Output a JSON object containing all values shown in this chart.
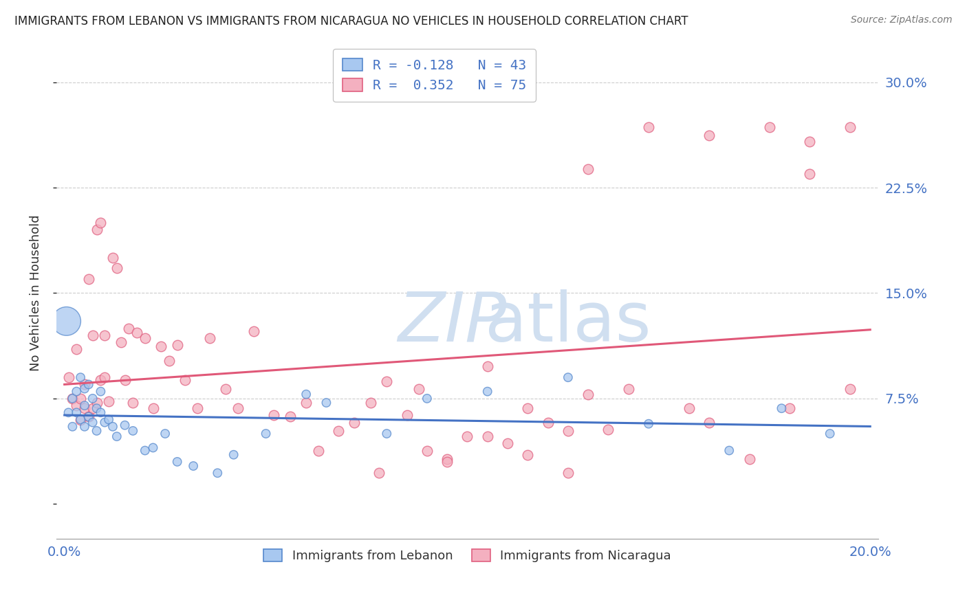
{
  "title": "IMMIGRANTS FROM LEBANON VS IMMIGRANTS FROM NICARAGUA NO VEHICLES IN HOUSEHOLD CORRELATION CHART",
  "source": "Source: ZipAtlas.com",
  "ylabel": "No Vehicles in Household",
  "xlim_min": -0.002,
  "xlim_max": 0.202,
  "ylim_min": -0.025,
  "ylim_max": 0.325,
  "ytick_vals": [
    0.0,
    0.075,
    0.15,
    0.225,
    0.3
  ],
  "ytick_labels": [
    "",
    "7.5%",
    "15.0%",
    "22.5%",
    "30.0%"
  ],
  "xtick_vals": [
    0.0,
    0.05,
    0.1,
    0.15,
    0.2
  ],
  "xtick_labels": [
    "0.0%",
    "",
    "",
    "",
    "20.0%"
  ],
  "lebanon_color": "#a8c8f0",
  "nicaragua_color": "#f4b0c0",
  "lebanon_edge_color": "#5588cc",
  "nicaragua_edge_color": "#e06080",
  "lebanon_line_color": "#4472c4",
  "nicaragua_line_color": "#e05878",
  "watermark_color": "#d0dff0",
  "legend_label_leb": "R = -0.128   N = 43",
  "legend_label_nic": "R =  0.352   N = 75",
  "bottom_label_leb": "Immigrants from Lebanon",
  "bottom_label_nic": "Immigrants from Nicaragua",
  "lebanon_x": [
    0.0005,
    0.001,
    0.002,
    0.002,
    0.003,
    0.003,
    0.004,
    0.004,
    0.005,
    0.005,
    0.005,
    0.006,
    0.006,
    0.007,
    0.007,
    0.008,
    0.008,
    0.009,
    0.009,
    0.01,
    0.011,
    0.012,
    0.013,
    0.015,
    0.017,
    0.02,
    0.022,
    0.025,
    0.028,
    0.032,
    0.038,
    0.042,
    0.05,
    0.06,
    0.065,
    0.08,
    0.09,
    0.105,
    0.125,
    0.145,
    0.165,
    0.178,
    0.19
  ],
  "lebanon_y": [
    0.13,
    0.065,
    0.075,
    0.055,
    0.08,
    0.065,
    0.09,
    0.06,
    0.082,
    0.07,
    0.055,
    0.085,
    0.062,
    0.075,
    0.058,
    0.068,
    0.052,
    0.08,
    0.065,
    0.058,
    0.06,
    0.055,
    0.048,
    0.056,
    0.052,
    0.038,
    0.04,
    0.05,
    0.03,
    0.027,
    0.022,
    0.035,
    0.05,
    0.078,
    0.072,
    0.05,
    0.075,
    0.08,
    0.09,
    0.057,
    0.038,
    0.068,
    0.05
  ],
  "lebanon_sizes": [
    900,
    80,
    80,
    80,
    80,
    80,
    80,
    80,
    80,
    80,
    80,
    80,
    80,
    80,
    80,
    80,
    80,
    80,
    80,
    80,
    80,
    80,
    80,
    80,
    80,
    80,
    80,
    80,
    80,
    80,
    80,
    80,
    80,
    80,
    80,
    80,
    80,
    80,
    80,
    80,
    80,
    80,
    80
  ],
  "nicaragua_x": [
    0.001,
    0.002,
    0.003,
    0.003,
    0.004,
    0.004,
    0.005,
    0.005,
    0.006,
    0.006,
    0.007,
    0.007,
    0.008,
    0.008,
    0.009,
    0.009,
    0.01,
    0.01,
    0.011,
    0.012,
    0.013,
    0.014,
    0.015,
    0.016,
    0.017,
    0.018,
    0.02,
    0.022,
    0.024,
    0.026,
    0.028,
    0.03,
    0.033,
    0.036,
    0.04,
    0.043,
    0.047,
    0.052,
    0.056,
    0.06,
    0.063,
    0.068,
    0.072,
    0.076,
    0.08,
    0.085,
    0.09,
    0.095,
    0.1,
    0.105,
    0.11,
    0.115,
    0.12,
    0.125,
    0.13,
    0.135,
    0.14,
    0.155,
    0.16,
    0.17,
    0.18,
    0.185,
    0.195,
    0.13,
    0.145,
    0.16,
    0.175,
    0.185,
    0.195,
    0.078,
    0.088,
    0.095,
    0.105,
    0.115,
    0.125
  ],
  "nicaragua_y": [
    0.09,
    0.075,
    0.11,
    0.07,
    0.075,
    0.06,
    0.085,
    0.068,
    0.16,
    0.062,
    0.12,
    0.068,
    0.195,
    0.072,
    0.2,
    0.088,
    0.09,
    0.12,
    0.073,
    0.175,
    0.168,
    0.115,
    0.088,
    0.125,
    0.072,
    0.122,
    0.118,
    0.068,
    0.112,
    0.102,
    0.113,
    0.088,
    0.068,
    0.118,
    0.082,
    0.068,
    0.123,
    0.063,
    0.062,
    0.072,
    0.038,
    0.052,
    0.058,
    0.072,
    0.087,
    0.063,
    0.038,
    0.032,
    0.048,
    0.098,
    0.043,
    0.068,
    0.058,
    0.052,
    0.078,
    0.053,
    0.082,
    0.068,
    0.058,
    0.032,
    0.068,
    0.235,
    0.268,
    0.238,
    0.268,
    0.262,
    0.268,
    0.258,
    0.082,
    0.022,
    0.082,
    0.03,
    0.048,
    0.035,
    0.022
  ]
}
